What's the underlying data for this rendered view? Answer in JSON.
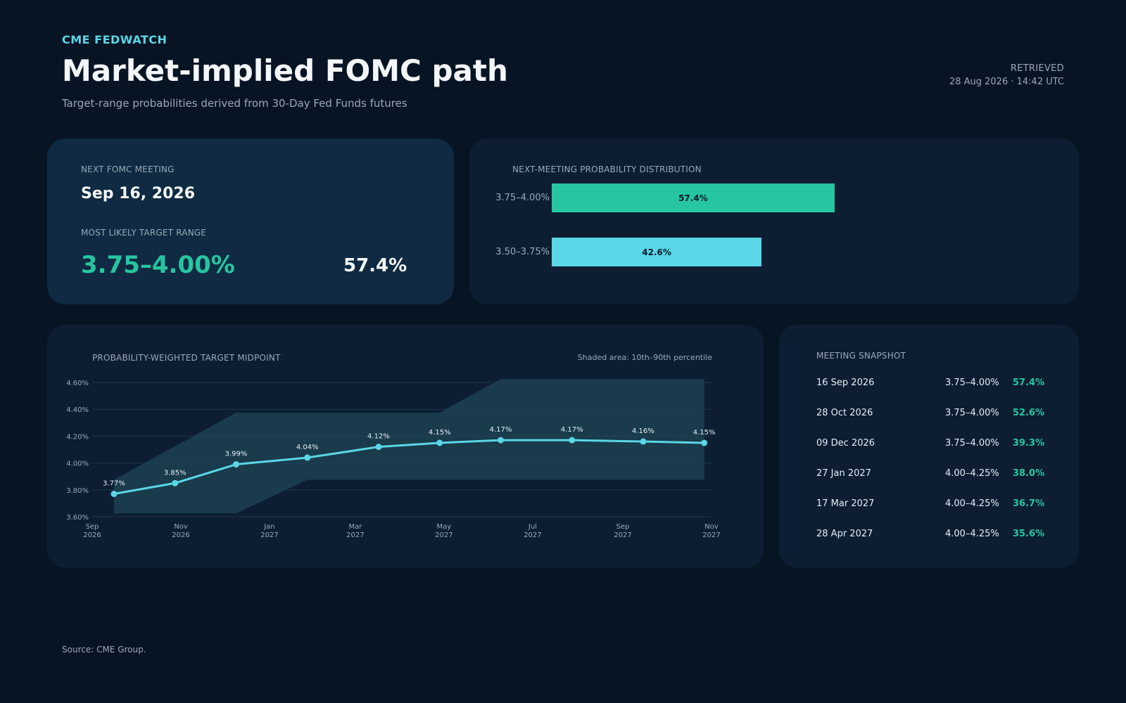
{
  "header": {
    "kicker": "CME FEDWATCH",
    "title": "Market-implied FOMC path",
    "subtitle": "Target-range probabilities derived from 30-Day Fed Funds futures",
    "retrieved_label": "RETRIEVED",
    "retrieved_value": "28 Aug 2026 · 14:42 UTC"
  },
  "next_meeting": {
    "label": "NEXT FOMC MEETING",
    "date": "Sep 16, 2026",
    "range_label": "MOST LIKELY TARGET RANGE",
    "range": "3.75–4.00%",
    "probability": "57.4%"
  },
  "distribution": {
    "title": "NEXT-MEETING PROBABILITY DISTRIBUTION",
    "rows": [
      {
        "range": "3.75–4.00%",
        "value": 57.4,
        "label": "57.4%",
        "color": "#26c6a0"
      },
      {
        "range": "3.50–3.75%",
        "value": 42.6,
        "label": "42.6%",
        "color": "#5ad6e6"
      }
    ]
  },
  "chart_data": {
    "type": "line",
    "title": "PROBABILITY-WEIGHTED TARGET MIDPOINT",
    "note": "Shaded area: 10th–90th percentile",
    "x_ticks": [
      {
        "top": "Sep",
        "bottom": "2026"
      },
      {
        "top": "Nov",
        "bottom": "2026"
      },
      {
        "top": "Jan",
        "bottom": "2027"
      },
      {
        "top": "Mar",
        "bottom": "2027"
      },
      {
        "top": "May",
        "bottom": "2027"
      },
      {
        "top": "Jul",
        "bottom": "2027"
      },
      {
        "top": "Sep",
        "bottom": "2027"
      },
      {
        "top": "Nov",
        "bottom": "2027"
      }
    ],
    "x_tick_dates": [
      "2026-09-01",
      "2026-11-01",
      "2027-01-01",
      "2027-03-01",
      "2027-05-01",
      "2027-07-01",
      "2027-09-01",
      "2027-11-01"
    ],
    "ylim": [
      3.6,
      4.6
    ],
    "y_ticks": [
      3.6,
      3.8,
      4.0,
      4.2,
      4.4,
      4.6
    ],
    "y_tick_labels": [
      "3.60%",
      "3.80%",
      "4.00%",
      "4.20%",
      "4.40%",
      "4.60%"
    ],
    "series": [
      {
        "x": [
          "2026-09-16",
          "2026-10-28",
          "2026-12-09",
          "2027-01-27",
          "2027-03-17",
          "2027-04-28",
          "2027-06-09",
          "2027-07-28",
          "2027-09-15",
          "2027-10-27"
        ],
        "values": [
          3.77,
          3.85,
          3.99,
          4.04,
          4.12,
          4.15,
          4.17,
          4.17,
          4.16,
          4.15
        ],
        "labels": [
          "3.77%",
          "3.85%",
          "3.99%",
          "4.04%",
          "4.12%",
          "4.15%",
          "4.17%",
          "4.17%",
          "4.16%",
          "4.15%"
        ],
        "color": "#5ad6e6"
      }
    ],
    "band_p10": [
      3.625,
      3.625,
      3.625,
      3.875,
      3.875,
      3.875,
      3.875,
      3.875,
      3.875,
      3.875
    ],
    "band_p90": [
      3.875,
      4.125,
      4.375,
      4.375,
      4.375,
      4.375,
      4.625,
      4.625,
      4.625,
      4.625
    ],
    "band_color": "#1e4654",
    "grid": true
  },
  "snapshot": {
    "title": "MEETING SNAPSHOT",
    "rows": [
      {
        "date": "16 Sep 2026",
        "range": "3.75–4.00%",
        "prob": "57.4%"
      },
      {
        "date": "28 Oct 2026",
        "range": "3.75–4.00%",
        "prob": "52.6%"
      },
      {
        "date": "09 Dec 2026",
        "range": "3.75–4.00%",
        "prob": "39.3%"
      },
      {
        "date": "27 Jan 2027",
        "range": "4.00–4.25%",
        "prob": "38.0%"
      },
      {
        "date": "17 Mar 2027",
        "range": "4.00–4.25%",
        "prob": "36.7%"
      },
      {
        "date": "28 Apr 2027",
        "range": "4.00–4.25%",
        "prob": "35.6%"
      }
    ]
  },
  "footer": {
    "source": "Source: CME Group."
  }
}
